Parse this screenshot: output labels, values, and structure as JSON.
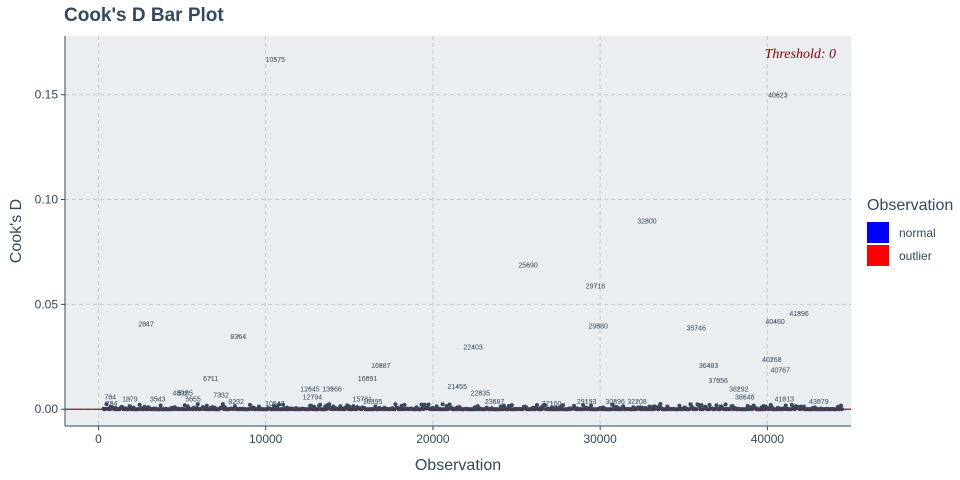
{
  "chart_data": {
    "type": "scatter",
    "title": "Cook's D Bar Plot",
    "xlabel": "Observation",
    "ylabel": "Cook's D",
    "xlim": [
      -2000,
      45000
    ],
    "ylim": [
      -0.008,
      0.178
    ],
    "x_ticks": [
      0,
      10000,
      20000,
      30000,
      40000
    ],
    "x_tick_labels": [
      "0",
      "10000",
      "20000",
      "30000",
      "40000"
    ],
    "y_ticks": [
      0.0,
      0.05,
      0.1,
      0.15
    ],
    "y_tick_labels": [
      "0.00",
      "0.05",
      "0.10",
      "0.15"
    ],
    "grid": true,
    "threshold_value": 0,
    "threshold_label": "Threshold: 0",
    "legend": {
      "title": "Observation",
      "position": "right",
      "items": [
        {
          "label": "normal",
          "color": "#0000ff"
        },
        {
          "label": "outlier",
          "color": "#ff0000"
        }
      ]
    },
    "colors": {
      "panel": "#eaeef0",
      "points": "#34495e",
      "labels": "#34495e",
      "threshold_line": "#8b1a1a",
      "threshold_text": "#8b0000",
      "grid": "#c8cccf"
    },
    "n_observations": 44500,
    "labeled_points": [
      {
        "x": 10575,
        "y": 0.167,
        "label": "10575"
      },
      {
        "x": 40623,
        "y": 0.15,
        "label": "40623"
      },
      {
        "x": 32800,
        "y": 0.09,
        "label": "32800"
      },
      {
        "x": 25690,
        "y": 0.069,
        "label": "25690"
      },
      {
        "x": 29718,
        "y": 0.059,
        "label": "29718"
      },
      {
        "x": 41896,
        "y": 0.046,
        "label": "41896"
      },
      {
        "x": 40460,
        "y": 0.042,
        "label": "40460"
      },
      {
        "x": 2847,
        "y": 0.041,
        "label": "2847"
      },
      {
        "x": 29880,
        "y": 0.04,
        "label": "29880"
      },
      {
        "x": 35746,
        "y": 0.039,
        "label": "35746"
      },
      {
        "x": 8364,
        "y": 0.035,
        "label": "8364"
      },
      {
        "x": 22403,
        "y": 0.03,
        "label": "22403"
      },
      {
        "x": 40268,
        "y": 0.024,
        "label": "40268"
      },
      {
        "x": 36483,
        "y": 0.021,
        "label": "36483"
      },
      {
        "x": 16887,
        "y": 0.021,
        "label": "16887"
      },
      {
        "x": 40767,
        "y": 0.019,
        "label": "40767"
      },
      {
        "x": 16091,
        "y": 0.015,
        "label": "16091"
      },
      {
        "x": 6711,
        "y": 0.015,
        "label": "6711"
      },
      {
        "x": 37056,
        "y": 0.014,
        "label": "37056"
      },
      {
        "x": 21455,
        "y": 0.011,
        "label": "21455"
      },
      {
        "x": 12645,
        "y": 0.01,
        "label": "12645"
      },
      {
        "x": 13966,
        "y": 0.01,
        "label": "13966"
      },
      {
        "x": 38292,
        "y": 0.01,
        "label": "38292"
      },
      {
        "x": 5185,
        "y": 0.008,
        "label": "5185"
      },
      {
        "x": 4892,
        "y": 0.008,
        "label": "4892"
      },
      {
        "x": 22835,
        "y": 0.008,
        "label": "22835"
      },
      {
        "x": 7332,
        "y": 0.007,
        "label": "7332"
      },
      {
        "x": 12794,
        "y": 0.006,
        "label": "12794"
      },
      {
        "x": 38648,
        "y": 0.006,
        "label": "38648"
      },
      {
        "x": 704,
        "y": 0.006,
        "label": "704"
      },
      {
        "x": 1879,
        "y": 0.005,
        "label": "1879"
      },
      {
        "x": 3543,
        "y": 0.005,
        "label": "3543"
      },
      {
        "x": 15781,
        "y": 0.005,
        "label": "15781"
      },
      {
        "x": 41013,
        "y": 0.005,
        "label": "41013"
      },
      {
        "x": 5655,
        "y": 0.005,
        "label": "5655"
      },
      {
        "x": 30896,
        "y": 0.004,
        "label": "30896"
      },
      {
        "x": 23687,
        "y": 0.004,
        "label": "23687"
      },
      {
        "x": 43079,
        "y": 0.004,
        "label": "43079"
      },
      {
        "x": 29193,
        "y": 0.004,
        "label": "29193"
      },
      {
        "x": 8232,
        "y": 0.004,
        "label": "8232"
      },
      {
        "x": 16395,
        "y": 0.004,
        "label": "16395"
      },
      {
        "x": 32208,
        "y": 0.004,
        "label": "32208"
      },
      {
        "x": 10547,
        "y": 0.003,
        "label": "10547"
      },
      {
        "x": 27100,
        "y": 0.003,
        "label": "27100"
      },
      {
        "x": 784,
        "y": 0.003,
        "label": "784"
      }
    ]
  }
}
